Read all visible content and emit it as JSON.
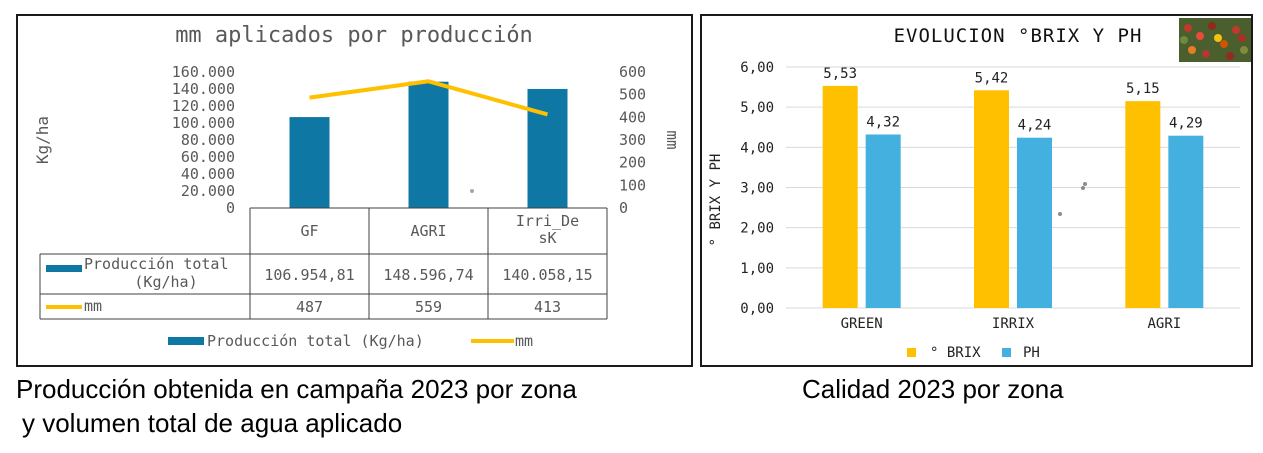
{
  "colors": {
    "bar_blue": "#0f77a4",
    "line_yellow": "#ffc000",
    "brix_yellow": "#ffc000",
    "ph_blue": "#44b0e0",
    "text_gray": "#595959",
    "grid_gray": "#d9d9d9"
  },
  "chart_data": [
    {
      "type": "bar",
      "title": "mm aplicados por producción",
      "categories": [
        "GF",
        "AGRI",
        "Irri_DesK"
      ],
      "category_labels": [
        [
          "GF"
        ],
        [
          "AGRI"
        ],
        [
          "Irri_De",
          "sK"
        ]
      ],
      "ylabel": "Kg/ha",
      "y2label": "mm",
      "ylim": [
        0,
        160000
      ],
      "y2lim": [
        0,
        600
      ],
      "yticks": [
        "0",
        "20.000",
        "40.000",
        "60.000",
        "80.000",
        "100.000",
        "120.000",
        "140.000",
        "160.000"
      ],
      "y2ticks": [
        "0",
        "100",
        "200",
        "300",
        "400",
        "500",
        "600"
      ],
      "series": [
        {
          "name": "Producción total (Kg/ha)",
          "name_lines": [
            "Producción total",
            "(Kg/ha)"
          ],
          "type": "bar",
          "axis": "left",
          "values": [
            106954.81,
            148596.74,
            140058.15
          ],
          "display": [
            "106.954,81",
            "148.596,74",
            "140.058,15"
          ]
        },
        {
          "name": "mm",
          "type": "line",
          "axis": "right",
          "values": [
            487,
            559,
            413
          ],
          "display": [
            "487",
            "559",
            "413"
          ]
        }
      ],
      "legend": [
        "Producción total (Kg/ha)",
        "mm"
      ]
    },
    {
      "type": "bar",
      "title": "EVOLUCION °BRIX Y PH",
      "categories": [
        "GREEN",
        "IRRIX",
        "AGRI"
      ],
      "ylabel": "° BRIX Y PH",
      "ylim": [
        0,
        6
      ],
      "yticks": [
        "0,00",
        "1,00",
        "2,00",
        "3,00",
        "4,00",
        "5,00",
        "6,00"
      ],
      "series": [
        {
          "name": "° BRIX",
          "values": [
            5.53,
            5.42,
            5.15
          ],
          "labels": [
            "5,53",
            "5,42",
            "5,15"
          ]
        },
        {
          "name": "PH",
          "values": [
            4.32,
            4.24,
            4.29
          ],
          "labels": [
            "4,32",
            "4,24",
            "4,29"
          ]
        }
      ],
      "legend": [
        "° BRIX",
        "PH"
      ]
    }
  ],
  "captions": {
    "left_line1": "Producción obtenida en campaña 2023 por zona",
    "left_line2": "y volumen total de agua aplicado",
    "right": "Calidad 2023 por zona"
  }
}
